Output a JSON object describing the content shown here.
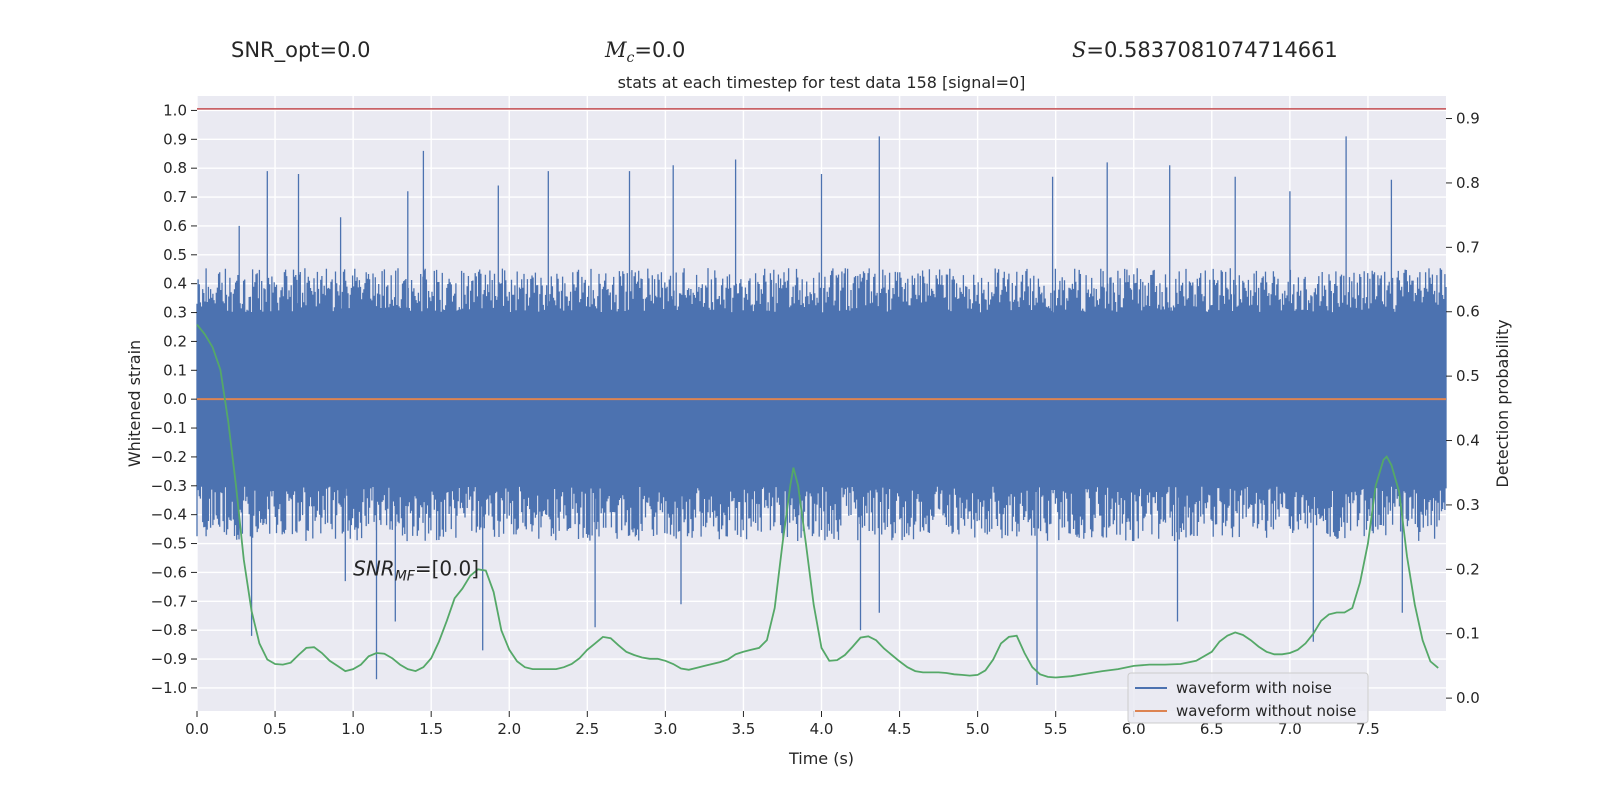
{
  "header": {
    "snr_opt": "SNR_opt=0.0",
    "mc_symbol": "M",
    "mc_sub": "c",
    "mc_value": "=0.0",
    "s_symbol": "S",
    "s_value": "=0.5837081074714661"
  },
  "chart_data": {
    "type": "line",
    "title": "stats at each timestep for test data 158 [signal=0]",
    "xlabel": "Time (s)",
    "ylabel": "Whitened strain",
    "y2label": "Detection probability",
    "xlim": [
      0.0,
      8.0
    ],
    "ylim": [
      -1.08,
      1.05
    ],
    "y2lim": [
      -0.02,
      0.935
    ],
    "xticks": [
      "0.0",
      "0.5",
      "1.0",
      "1.5",
      "2.0",
      "2.5",
      "3.0",
      "3.5",
      "4.0",
      "4.5",
      "5.0",
      "5.5",
      "6.0",
      "6.5",
      "7.0",
      "7.5"
    ],
    "yticks": [
      "1.0",
      "0.9",
      "0.8",
      "0.7",
      "0.6",
      "0.5",
      "0.4",
      "0.3",
      "0.2",
      "0.1",
      "0.0",
      "−0.1",
      "−0.2",
      "−0.3",
      "−0.4",
      "−0.5",
      "−0.6",
      "−0.7",
      "−0.8",
      "−0.9",
      "−1.0"
    ],
    "y2ticks": [
      "0.9",
      "0.8",
      "0.7",
      "0.6",
      "0.5",
      "0.4",
      "0.3",
      "0.2",
      "0.1",
      "0.0"
    ],
    "threshold": 0.915,
    "annotation_symbol": "SNR",
    "annotation_sub": "MF",
    "annotation_value": "=[0.0]",
    "legend_placement": "lower-right",
    "grid": true,
    "colors": {
      "noise": "#4c72b0",
      "clean": "#dd8452",
      "prob": "#55a868",
      "threshold": "#c44e52",
      "axes_bg": "#eaeaf2"
    },
    "series": [
      {
        "name": "waveform with noise",
        "kind": "noise-envelope",
        "band": [
          -0.24,
          0.25
        ],
        "typical_upper": 0.42,
        "typical_lower": -0.45,
        "peaks": [
          [
            0.27,
            0.6
          ],
          [
            0.45,
            0.79
          ],
          [
            0.65,
            0.78
          ],
          [
            0.92,
            0.63
          ],
          [
            1.35,
            0.72
          ],
          [
            1.45,
            0.86
          ],
          [
            1.93,
            0.74
          ],
          [
            2.25,
            0.79
          ],
          [
            2.77,
            0.79
          ],
          [
            3.05,
            0.81
          ],
          [
            3.45,
            0.83
          ],
          [
            4.0,
            0.78
          ],
          [
            4.37,
            0.91
          ],
          [
            5.48,
            0.77
          ],
          [
            5.83,
            0.82
          ],
          [
            6.23,
            0.81
          ],
          [
            6.65,
            0.77
          ],
          [
            7.0,
            0.72
          ],
          [
            7.36,
            0.91
          ],
          [
            7.65,
            0.76
          ]
        ],
        "troughs": [
          [
            0.35,
            -0.82
          ],
          [
            0.95,
            -0.63
          ],
          [
            1.15,
            -0.97
          ],
          [
            1.27,
            -0.77
          ],
          [
            1.83,
            -0.87
          ],
          [
            2.55,
            -0.79
          ],
          [
            3.1,
            -0.71
          ],
          [
            4.25,
            -0.8
          ],
          [
            4.37,
            -0.74
          ],
          [
            5.38,
            -0.99
          ],
          [
            6.28,
            -0.77
          ],
          [
            7.15,
            -0.84
          ],
          [
            7.72,
            -0.74
          ]
        ]
      },
      {
        "name": "waveform without noise",
        "kind": "flat",
        "value": 0.0
      },
      {
        "name": "Detection probability",
        "kind": "probability",
        "points": [
          [
            0.0,
            0.58
          ],
          [
            0.05,
            0.565
          ],
          [
            0.1,
            0.545
          ],
          [
            0.15,
            0.51
          ],
          [
            0.2,
            0.43
          ],
          [
            0.25,
            0.33
          ],
          [
            0.3,
            0.215
          ],
          [
            0.35,
            0.135
          ],
          [
            0.4,
            0.085
          ],
          [
            0.45,
            0.06
          ],
          [
            0.5,
            0.053
          ],
          [
            0.55,
            0.052
          ],
          [
            0.6,
            0.055
          ],
          [
            0.65,
            0.067
          ],
          [
            0.7,
            0.078
          ],
          [
            0.75,
            0.079
          ],
          [
            0.8,
            0.07
          ],
          [
            0.85,
            0.058
          ],
          [
            0.9,
            0.05
          ],
          [
            0.95,
            0.042
          ],
          [
            1.0,
            0.045
          ],
          [
            1.05,
            0.052
          ],
          [
            1.1,
            0.065
          ],
          [
            1.15,
            0.07
          ],
          [
            1.2,
            0.069
          ],
          [
            1.25,
            0.062
          ],
          [
            1.3,
            0.052
          ],
          [
            1.35,
            0.045
          ],
          [
            1.4,
            0.042
          ],
          [
            1.45,
            0.048
          ],
          [
            1.5,
            0.062
          ],
          [
            1.55,
            0.088
          ],
          [
            1.6,
            0.12
          ],
          [
            1.65,
            0.155
          ],
          [
            1.7,
            0.17
          ],
          [
            1.75,
            0.19
          ],
          [
            1.8,
            0.2
          ],
          [
            1.85,
            0.198
          ],
          [
            1.9,
            0.165
          ],
          [
            1.95,
            0.105
          ],
          [
            2.0,
            0.075
          ],
          [
            2.05,
            0.057
          ],
          [
            2.1,
            0.048
          ],
          [
            2.15,
            0.045
          ],
          [
            2.2,
            0.045
          ],
          [
            2.25,
            0.045
          ],
          [
            2.3,
            0.045
          ],
          [
            2.35,
            0.048
          ],
          [
            2.4,
            0.053
          ],
          [
            2.45,
            0.062
          ],
          [
            2.5,
            0.075
          ],
          [
            2.55,
            0.085
          ],
          [
            2.6,
            0.095
          ],
          [
            2.65,
            0.093
          ],
          [
            2.7,
            0.082
          ],
          [
            2.75,
            0.072
          ],
          [
            2.8,
            0.067
          ],
          [
            2.85,
            0.063
          ],
          [
            2.9,
            0.061
          ],
          [
            2.95,
            0.061
          ],
          [
            3.0,
            0.058
          ],
          [
            3.05,
            0.053
          ],
          [
            3.1,
            0.046
          ],
          [
            3.15,
            0.044
          ],
          [
            3.2,
            0.047
          ],
          [
            3.25,
            0.05
          ],
          [
            3.3,
            0.053
          ],
          [
            3.35,
            0.056
          ],
          [
            3.4,
            0.06
          ],
          [
            3.45,
            0.068
          ],
          [
            3.5,
            0.072
          ],
          [
            3.55,
            0.075
          ],
          [
            3.6,
            0.078
          ],
          [
            3.65,
            0.09
          ],
          [
            3.7,
            0.14
          ],
          [
            3.75,
            0.24
          ],
          [
            3.8,
            0.33
          ],
          [
            3.82,
            0.358
          ],
          [
            3.85,
            0.33
          ],
          [
            3.9,
            0.24
          ],
          [
            3.95,
            0.145
          ],
          [
            4.0,
            0.078
          ],
          [
            4.05,
            0.058
          ],
          [
            4.1,
            0.059
          ],
          [
            4.15,
            0.067
          ],
          [
            4.2,
            0.08
          ],
          [
            4.25,
            0.094
          ],
          [
            4.3,
            0.096
          ],
          [
            4.35,
            0.09
          ],
          [
            4.4,
            0.077
          ],
          [
            4.45,
            0.067
          ],
          [
            4.5,
            0.057
          ],
          [
            4.55,
            0.048
          ],
          [
            4.6,
            0.042
          ],
          [
            4.65,
            0.04
          ],
          [
            4.7,
            0.04
          ],
          [
            4.75,
            0.04
          ],
          [
            4.8,
            0.039
          ],
          [
            4.85,
            0.037
          ],
          [
            4.9,
            0.036
          ],
          [
            4.95,
            0.035
          ],
          [
            5.0,
            0.036
          ],
          [
            5.05,
            0.043
          ],
          [
            5.1,
            0.06
          ],
          [
            5.15,
            0.085
          ],
          [
            5.2,
            0.095
          ],
          [
            5.25,
            0.097
          ],
          [
            5.3,
            0.07
          ],
          [
            5.35,
            0.048
          ],
          [
            5.4,
            0.037
          ],
          [
            5.45,
            0.033
          ],
          [
            5.5,
            0.032
          ],
          [
            5.6,
            0.034
          ],
          [
            5.7,
            0.038
          ],
          [
            5.8,
            0.042
          ],
          [
            5.9,
            0.045
          ],
          [
            6.0,
            0.05
          ],
          [
            6.1,
            0.052
          ],
          [
            6.2,
            0.052
          ],
          [
            6.3,
            0.053
          ],
          [
            6.4,
            0.058
          ],
          [
            6.5,
            0.072
          ],
          [
            6.55,
            0.088
          ],
          [
            6.6,
            0.097
          ],
          [
            6.65,
            0.102
          ],
          [
            6.7,
            0.098
          ],
          [
            6.75,
            0.09
          ],
          [
            6.8,
            0.08
          ],
          [
            6.85,
            0.072
          ],
          [
            6.9,
            0.068
          ],
          [
            6.95,
            0.068
          ],
          [
            7.0,
            0.07
          ],
          [
            7.05,
            0.075
          ],
          [
            7.1,
            0.085
          ],
          [
            7.15,
            0.1
          ],
          [
            7.2,
            0.12
          ],
          [
            7.25,
            0.13
          ],
          [
            7.3,
            0.133
          ],
          [
            7.35,
            0.133
          ],
          [
            7.4,
            0.14
          ],
          [
            7.45,
            0.18
          ],
          [
            7.5,
            0.24
          ],
          [
            7.55,
            0.33
          ],
          [
            7.6,
            0.37
          ],
          [
            7.62,
            0.375
          ],
          [
            7.65,
            0.362
          ],
          [
            7.7,
            0.32
          ],
          [
            7.75,
            0.22
          ],
          [
            7.8,
            0.145
          ],
          [
            7.85,
            0.09
          ],
          [
            7.9,
            0.057
          ],
          [
            7.95,
            0.047
          ]
        ]
      }
    ]
  }
}
